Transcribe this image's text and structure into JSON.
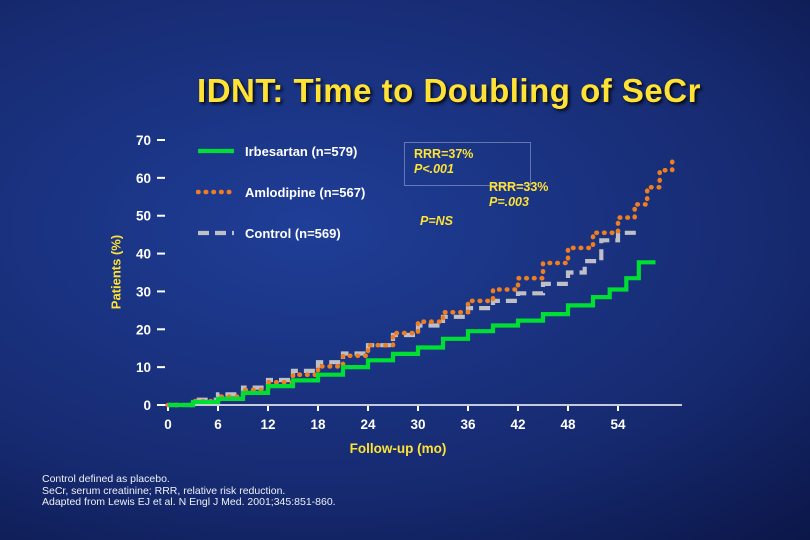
{
  "slide": {
    "title": "IDNT: Time to Doubling of SeCr",
    "footnotes": [
      "Control defined as placebo.",
      "SeCr, serum creatinine; RRR, relative risk reduction.",
      "Adapted from Lewis EJ et al. N Engl J Med. 2001;345:851-860."
    ]
  },
  "palette": {
    "background_center": "#1f3e97",
    "background_edge": "#05092b",
    "title_text": "#ffe233",
    "annotation_text": "#ffe233",
    "axis_text": "#ffffff"
  },
  "chart_data": {
    "type": "line",
    "subtype": "step-cumulative-incidence",
    "title": "IDNT: Time to Doubling of SeCr",
    "xlabel": "Follow-up (mo)",
    "ylabel": "Patients (%)",
    "xlim": [
      0,
      60
    ],
    "ylim": [
      0,
      70
    ],
    "x_ticks": [
      0,
      6,
      12,
      18,
      24,
      30,
      36,
      42,
      48,
      54
    ],
    "y_ticks": [
      0,
      10,
      20,
      30,
      40,
      50,
      60,
      70
    ],
    "grid": false,
    "legend_position": "upper-left",
    "series": [
      {
        "name": "Irbesartan (n=579)",
        "color": "#00dd33",
        "style": "solid",
        "x": [
          0,
          3,
          6,
          9,
          12,
          15,
          18,
          21,
          24,
          27,
          30,
          33,
          36,
          39,
          42,
          45,
          48,
          51,
          53,
          55,
          56.5,
          58.5
        ],
        "values": [
          0,
          0.8,
          1.6,
          3.2,
          5,
          6.5,
          8,
          10,
          11.8,
          13.5,
          15.2,
          17.5,
          19.5,
          21,
          22.3,
          24,
          26.3,
          28.5,
          30.5,
          33.5,
          37.7,
          37.7
        ]
      },
      {
        "name": "Amlodipine (n=567)",
        "color": "#ef7d22",
        "style": "dotted",
        "x": [
          0,
          3,
          6,
          9,
          12,
          15,
          18,
          21,
          24,
          27,
          30,
          33,
          36,
          39,
          42,
          45,
          48,
          51,
          54,
          56,
          57.5,
          59,
          60.5
        ],
        "values": [
          0,
          1,
          2.2,
          4,
          6,
          8,
          10.2,
          13,
          15.8,
          19,
          22,
          24.5,
          27.5,
          30.5,
          33.5,
          37.5,
          41.5,
          45.5,
          49.5,
          53,
          57.5,
          62,
          65
        ]
      },
      {
        "name": "Control (n=569)",
        "color": "#bfbfc6",
        "style": "dashed",
        "x": [
          0,
          3,
          6,
          9,
          12,
          15,
          18,
          21,
          24,
          27,
          30,
          33,
          36,
          39,
          42,
          45,
          48,
          50,
          52,
          54,
          56.5
        ],
        "values": [
          0,
          1.4,
          2.8,
          4.6,
          6.6,
          9,
          11.3,
          13.6,
          15.8,
          18.5,
          21,
          23.3,
          25.6,
          27.5,
          29.5,
          32,
          35,
          38,
          43.5,
          45.5,
          45.5
        ]
      }
    ],
    "annotations": [
      {
        "text": "RRR=37%",
        "detail": "P<.001",
        "boxed": true
      },
      {
        "text": "RRR=33%",
        "detail": "P=.003",
        "boxed": false
      },
      {
        "text": "P=NS",
        "boxed": false
      }
    ]
  }
}
